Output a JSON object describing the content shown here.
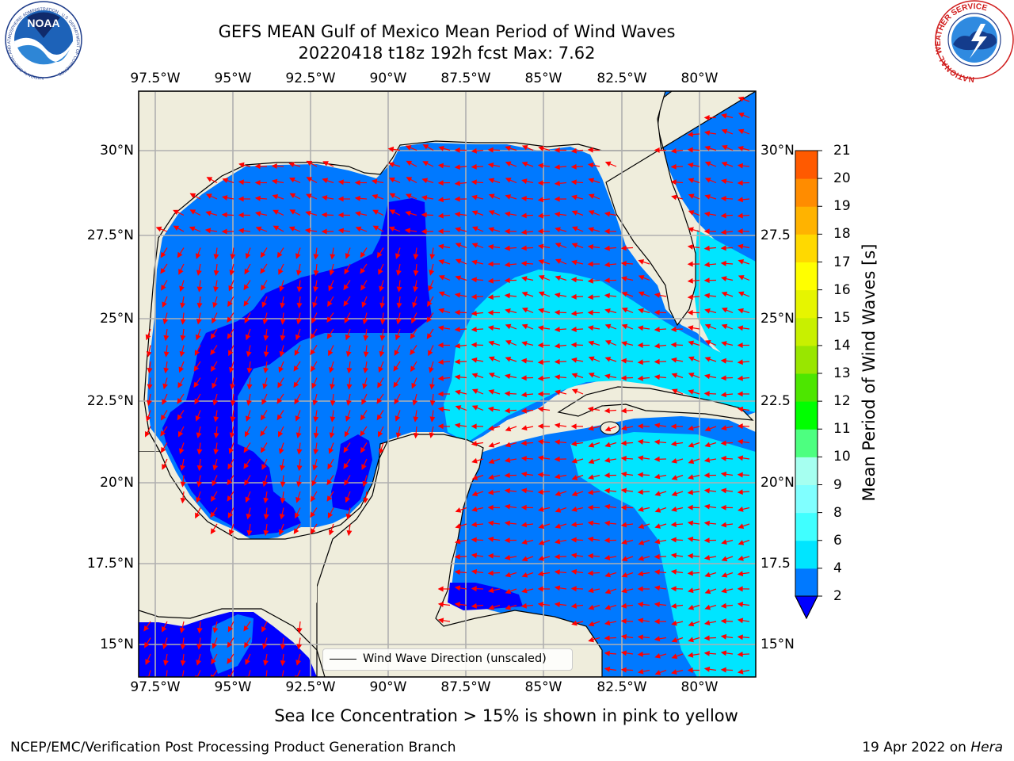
{
  "title": {
    "line1": "GEFS MEAN Gulf of Mexico Mean Period of Wind Waves",
    "line2": "20220418 t18z 192h fcst   Max: 7.62"
  },
  "map": {
    "lon_ticks": [
      "97.5°W",
      "95°W",
      "92.5°W",
      "90°W",
      "87.5°W",
      "85°W",
      "82.5°W",
      "80°W"
    ],
    "lat_ticks_left": [
      "30°N",
      "27.5°N",
      "25°N",
      "22.5°N",
      "20°N",
      "17.5°N",
      "15°N"
    ],
    "lat_ticks_right": [
      "30°N",
      "27.5",
      "25°N",
      "22.5",
      "20°N",
      "17.5",
      "15°N"
    ],
    "land_color": "#efeddc",
    "arrow_color": "#ff0000"
  },
  "legend": {
    "label": "Wind Wave Direction (unscaled)"
  },
  "colorbar": {
    "label": "Mean Period of Wind Waves [s]",
    "ticks": [
      "2",
      "4",
      "6",
      "8",
      "9",
      "10",
      "11",
      "12",
      "13",
      "14",
      "15",
      "16",
      "17",
      "18",
      "19",
      "20",
      "21"
    ],
    "colors": [
      "#0079ff",
      "#00e5ff",
      "#40ffff",
      "#80ffff",
      "#a6fff0",
      "#4dff80",
      "#00ff00",
      "#4de600",
      "#99e600",
      "#c8f000",
      "#e6f500",
      "#ffff00",
      "#ffd900",
      "#ffb300",
      "#ff8c00",
      "#ff5a00",
      "#ff2a00",
      "#ff0000"
    ],
    "under_color": "#0000ff"
  },
  "caption": "Sea Ice Concentration > 15% is shown in pink to yellow",
  "footer": {
    "left": "NCEP/EMC/Verification Post Processing Product Generation Branch",
    "date": "19 Apr 2022 on ",
    "machine": "Hera"
  },
  "logos": {
    "noaa_text": "NOAA",
    "noaa_ring": "NATIONAL OCEANIC AND ATMOSPHERIC ADMINISTRATION · U.S. DEPARTMENT OF COMMERCE",
    "nws_ring": "NATIONAL WEATHER SERVICE"
  }
}
